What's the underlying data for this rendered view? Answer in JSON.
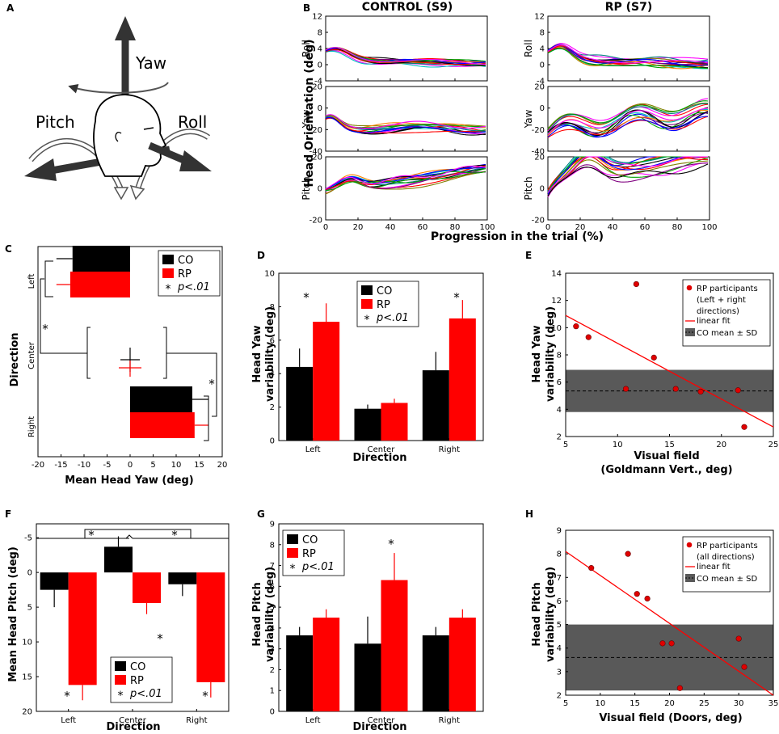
{
  "colors": {
    "co": "#000000",
    "rp": "#ff0000",
    "band": "#595959",
    "trace_palette": [
      "#000000",
      "#ff0000",
      "#0000ff",
      "#00a000",
      "#ff00ff",
      "#00c0c0",
      "#808000",
      "#800080",
      "#008080",
      "#ff8000"
    ]
  },
  "panels": {
    "A": "A",
    "B": "B",
    "C": "C",
    "D": "D",
    "E": "E",
    "F": "F",
    "G": "G",
    "H": "H"
  },
  "panelA": {
    "yaw": "Yaw",
    "pitch": "Pitch",
    "roll": "Roll"
  },
  "panelB": {
    "title_control": "CONTROL (S9)",
    "title_rp": "RP (S7)",
    "ylabel": "Head Orientation (deg)",
    "xlabel": "Progression in the trial (%)",
    "rows": [
      {
        "label": "Roll",
        "ylim": [
          -4,
          12
        ],
        "yticks": [
          -4,
          0,
          4,
          8,
          12
        ]
      },
      {
        "label": "Yaw",
        "ylim": [
          -40,
          20
        ],
        "yticks": [
          -40,
          -20,
          0,
          20
        ]
      },
      {
        "label": "Pitch",
        "ylim": [
          -20,
          20
        ],
        "yticks": [
          -20,
          0,
          20
        ]
      }
    ],
    "xticks": [
      0,
      20,
      40,
      60,
      80,
      100
    ]
  },
  "chart_data": [
    {
      "panel": "C",
      "type": "bar",
      "orientation": "horizontal",
      "categories": [
        "Left",
        "Center",
        "Right"
      ],
      "series": [
        {
          "name": "CO",
          "values": [
            -12.5,
            0.0,
            13.5
          ],
          "errors": [
            3.5,
            2.0,
            3.5
          ]
        },
        {
          "name": "RP",
          "values": [
            -13.0,
            0.0,
            14.0
          ],
          "errors": [
            3.0,
            2.0,
            3.0
          ]
        }
      ],
      "xlabel": "Mean Head Yaw (deg)",
      "ylabel": "Direction",
      "xlim": [
        -20,
        20
      ],
      "xticks": [
        -20,
        -15,
        -10,
        -5,
        0,
        5,
        10,
        15,
        20
      ],
      "legend": [
        "CO",
        "RP"
      ],
      "legend_sig": "p<.01",
      "sig_marker": "*"
    },
    {
      "panel": "D",
      "type": "bar",
      "categories": [
        "Left",
        "Center",
        "Right"
      ],
      "series": [
        {
          "name": "CO",
          "values": [
            4.4,
            1.9,
            4.2
          ],
          "errors": [
            1.1,
            0.25,
            1.1
          ]
        },
        {
          "name": "RP",
          "values": [
            7.1,
            2.25,
            7.3
          ],
          "errors": [
            1.1,
            0.25,
            1.1
          ]
        }
      ],
      "xlabel": "Direction",
      "ylabel": "Head Yaw variability (deg)",
      "ylim": [
        0,
        10
      ],
      "yticks": [
        0,
        2,
        4,
        6,
        8,
        10
      ],
      "legend": [
        "CO",
        "RP"
      ],
      "legend_sig": "p<.01",
      "sig_marker": "*"
    },
    {
      "panel": "E",
      "type": "scatter",
      "x": [
        6.0,
        7.2,
        10.8,
        11.8,
        13.5,
        15.6,
        18.0,
        21.6,
        22.2
      ],
      "y": [
        10.1,
        9.3,
        5.5,
        13.2,
        7.8,
        5.5,
        5.3,
        5.4,
        2.7
      ],
      "fit": {
        "x": [
          5,
          25
        ],
        "y": [
          10.9,
          2.7
        ]
      },
      "band": {
        "mean": 5.35,
        "low": 3.8,
        "high": 6.9
      },
      "xlabel": "Visual field",
      "xlabel2": "(Goldmann Vert., deg)",
      "ylabel": "Head Yaw variability (deg)",
      "xlim": [
        5,
        25
      ],
      "ylim": [
        2,
        14
      ],
      "xticks": [
        5,
        10,
        15,
        20,
        25
      ],
      "yticks": [
        2,
        4,
        6,
        8,
        10,
        12,
        14
      ],
      "legend": {
        "points": "RP participants",
        "points2": "(Left + right",
        "points3": "directions)",
        "fit": "linear fit",
        "band": "CO mean ± SD"
      }
    },
    {
      "panel": "F",
      "type": "bar",
      "axis": "inverted",
      "categories": [
        "Left",
        "Center",
        "Right"
      ],
      "series": [
        {
          "name": "CO",
          "values": [
            2.5,
            -3.7,
            1.7
          ],
          "errors": [
            2.5,
            1.5,
            1.7
          ]
        },
        {
          "name": "RP",
          "values": [
            16.2,
            4.4,
            15.8
          ],
          "errors": [
            2.2,
            1.6,
            2.2
          ]
        }
      ],
      "xlabel": "Direction",
      "ylabel": "Mean Head Pitch (deg)",
      "ylim": [
        -7,
        20
      ],
      "yticks": [
        -5,
        0,
        5,
        10,
        15,
        20
      ],
      "legend": [
        "CO",
        "RP"
      ],
      "legend_sig": "p<.01",
      "sig_marker": "*"
    },
    {
      "panel": "G",
      "type": "bar",
      "categories": [
        "Left",
        "Center",
        "Right"
      ],
      "series": [
        {
          "name": "CO",
          "values": [
            3.65,
            3.25,
            3.65
          ],
          "errors": [
            0.4,
            1.3,
            0.4
          ]
        },
        {
          "name": "RP",
          "values": [
            4.5,
            6.3,
            4.5
          ],
          "errors": [
            0.4,
            1.3,
            0.4
          ]
        }
      ],
      "xlabel": "Direction",
      "ylabel": "Head Pitch variability (deg)",
      "ylim": [
        0,
        9
      ],
      "yticks": [
        0,
        1,
        2,
        3,
        4,
        5,
        6,
        7,
        8,
        9
      ],
      "legend": [
        "CO",
        "RP"
      ],
      "legend_sig": "p<.01",
      "sig_marker": "*"
    },
    {
      "panel": "H",
      "type": "scatter",
      "x": [
        8.7,
        14.0,
        15.3,
        16.8,
        19.0,
        20.3,
        21.5,
        30.0,
        30.8
      ],
      "y": [
        7.4,
        8.0,
        6.3,
        6.1,
        4.2,
        4.2,
        2.3,
        4.4,
        3.2
      ],
      "fit": {
        "x": [
          5,
          35
        ],
        "y": [
          8.1,
          2.0
        ]
      },
      "band": {
        "mean": 3.6,
        "low": 2.2,
        "high": 5.0
      },
      "xlabel": "Visual field (Doors, deg)",
      "ylabel": "Head Pitch variability (deg)",
      "xlim": [
        5,
        35
      ],
      "ylim": [
        2,
        9
      ],
      "xticks": [
        5,
        10,
        15,
        20,
        25,
        30,
        35
      ],
      "yticks": [
        2,
        3,
        4,
        5,
        6,
        7,
        8,
        9
      ],
      "legend": {
        "points": "RP participants",
        "points2": "(all directions)",
        "fit": "linear fit",
        "band": "CO mean ± SD"
      }
    }
  ]
}
